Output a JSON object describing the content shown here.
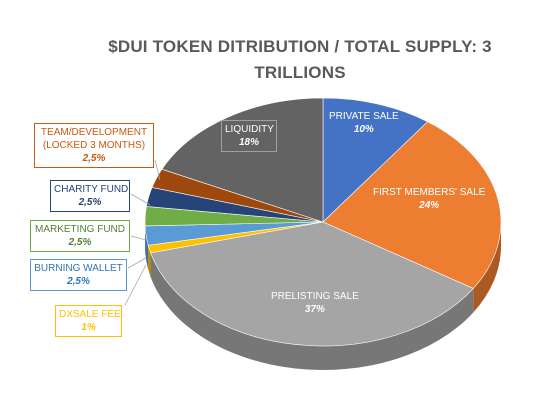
{
  "chart_data": {
    "type": "pie",
    "title": "$DUI TOKEN DITRIBUTION    /   TOTAL SUPPLY: 3 TRILLIONS",
    "legend": "none",
    "series": [
      {
        "name": "PRIVATE SALE",
        "value": 10,
        "label": "10%",
        "color": "#4472C4"
      },
      {
        "name": "FIRST MEMBERS' SALE",
        "value": 24,
        "label": "24%",
        "color": "#ED7D31"
      },
      {
        "name": "PRELISTING SALE",
        "value": 37,
        "label": "37%",
        "color": "#A5A5A5"
      },
      {
        "name": "DXSALE FEE",
        "value": 1,
        "label": "1%",
        "color": "#FFC000"
      },
      {
        "name": "BURNING WALLET",
        "value": 2.5,
        "label": "2,5%",
        "color": "#5B9BD5"
      },
      {
        "name": "MARKETING FUND",
        "value": 2.5,
        "label": "2,5%",
        "color": "#70AD47"
      },
      {
        "name": "CHARITY FUND",
        "value": 2.5,
        "label": "2,5%",
        "color": "#264478"
      },
      {
        "name": "TEAM/DEVELOPMENT (LOCKED 3 MONTHS)",
        "value": 2.5,
        "label": "2,5%",
        "color": "#9E480E"
      },
      {
        "name": "LIQUIDITY",
        "value": 18,
        "label": "18%",
        "color": "#636363"
      }
    ]
  }
}
